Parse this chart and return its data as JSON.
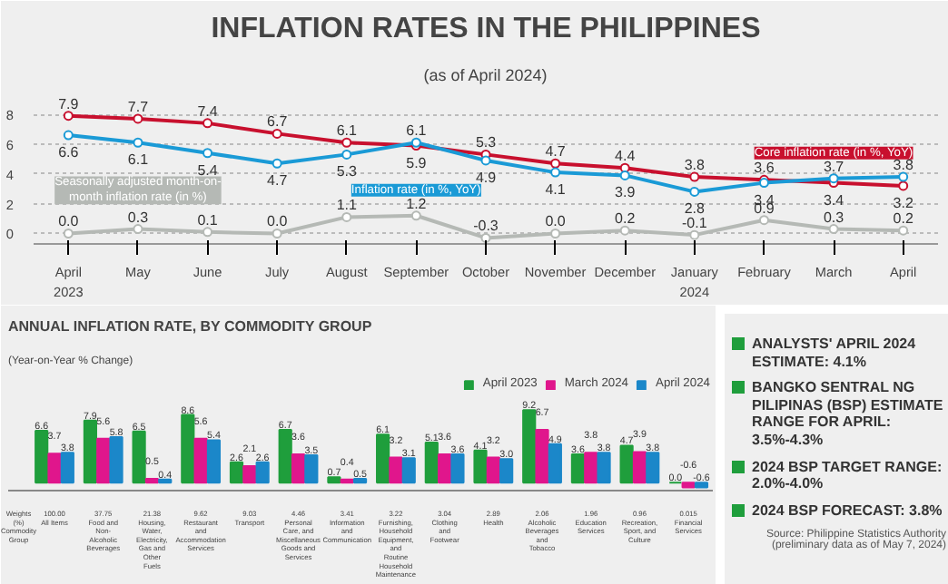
{
  "chart_data": [
    {
      "type": "line",
      "title": "INFLATION RATES IN THE PHILIPPINES",
      "subtitle": "(as of April 2024)",
      "categories": [
        "April 2023",
        "May",
        "June",
        "July",
        "August",
        "September",
        "October",
        "November",
        "December",
        "January 2024",
        "February",
        "March",
        "April"
      ],
      "series": [
        {
          "name": "Core inflation rate (in %, YoY)",
          "color": "#c8102e",
          "values": [
            7.9,
            7.7,
            7.4,
            6.7,
            6.1,
            5.9,
            5.3,
            4.7,
            4.4,
            3.8,
            3.6,
            3.4,
            3.2
          ]
        },
        {
          "name": "Inflation rate (in %, YoY)",
          "color": "#1a9ad6",
          "values": [
            6.6,
            6.1,
            5.4,
            4.7,
            5.3,
            6.1,
            4.9,
            4.1,
            3.9,
            2.8,
            3.4,
            3.7,
            3.8
          ]
        },
        {
          "name": "Seasonally adjusted month-on-month inflation rate (in %)",
          "color": "#b5b9b5",
          "values": [
            0.0,
            0.3,
            0.1,
            0.0,
            1.1,
            1.2,
            -0.3,
            0.0,
            0.2,
            -0.1,
            0.9,
            0.3,
            0.2
          ],
          "value_labels": [
            "0.0",
            "0.3",
            "0.1",
            "0.0",
            "1.1",
            "1.2",
            "-0.3",
            "0.0",
            "0.2",
            "-0.1",
            "0.9",
            "0.3",
            "0.2"
          ]
        }
      ],
      "ylim": [
        -0.7,
        9.4
      ],
      "yticks": [
        0,
        2,
        4,
        6,
        8
      ],
      "grid": "y",
      "marker": "circle",
      "data_labels": true
    },
    {
      "type": "bar",
      "title": "ANNUAL INFLATION RATE, BY COMMODITY GROUP",
      "subtitle": "(Year-on-Year % Change)",
      "categories": [
        "100.00\nAll Items",
        "37.75\nFood and Non-Alcoholic Beverages",
        "21.38\nHousing, Water, Electricity, Gas and Other Fuels",
        "9.62\nRestaurant and Accommodation Services",
        "9.03\nTransport",
        "4.46\nPersonal Care, and Miscellaneous Goods and Services",
        "3.41\nInformation and Communication",
        "3.22\nFurnishing, Household Equipment, and Routine Household Maintenance",
        "3.04\nClothing and Footwear",
        "2.89\nHealth",
        "2.06\nAlcoholic Beverages and Tobacco",
        "1.96\nEducation Services",
        "0.96\nRecreation, Sport, and Culture",
        "0.015\nFinancial Services"
      ],
      "series": [
        {
          "name": "April 2023",
          "color": "#1f9e3c",
          "values": [
            6.6,
            7.9,
            6.5,
            8.6,
            2.6,
            6.7,
            0.7,
            6.1,
            5.1,
            4.1,
            9.2,
            3.6,
            4.7,
            0.0
          ],
          "value_labels": [
            "6.6",
            "7.9",
            "6.5",
            "8.6",
            "2.6",
            "6.7",
            "0.7",
            "6.1",
            "5.1",
            "4.1",
            "9.2",
            "3.6",
            "4.7",
            "0.0"
          ]
        },
        {
          "name": "March 2024",
          "color": "#e0168c",
          "values": [
            3.7,
            5.6,
            0.5,
            5.6,
            2.1,
            3.6,
            0.4,
            3.2,
            3.6,
            3.2,
            6.7,
            3.8,
            3.9,
            -0.6
          ]
        },
        {
          "name": "April 2024",
          "color": "#1b87c9",
          "values": [
            3.8,
            5.8,
            0.4,
            5.4,
            2.6,
            3.5,
            0.5,
            3.1,
            3.6,
            3.0,
            4.9,
            3.8,
            3.8,
            -0.6
          ],
          "value_labels": [
            "3.8",
            "5.8",
            "0.4",
            "5.4",
            "2.6",
            "3.5",
            "0.5",
            "3.1",
            "3.6",
            "3.0",
            "4.9",
            "3.8",
            "3.8",
            "-0.6"
          ]
        }
      ],
      "ylim": [
        -1.0,
        13.5
      ],
      "tick_labels": "x",
      "data_labels": true,
      "legend": "top right",
      "annotations": [
        "Weights (%)",
        "Commodity Group"
      ]
    },
    {
      "type": "other",
      "annotations": [
        "ANALYSTS' APRIL 2024 ESTIMATE: 4.1%",
        "BANGKO SENTRAL NG PILIPINAS (BSP) ESTIMATE RANGE FOR APRIL: 3.5%-4.3%",
        "2024 BSP TARGET RANGE: 2.0%-4.0%",
        "2024 BSP FORECAST: 3.8%",
        "Source: Philippine Statistics Authority (preliminary data as of May 7, 2024)"
      ]
    }
  ]
}
